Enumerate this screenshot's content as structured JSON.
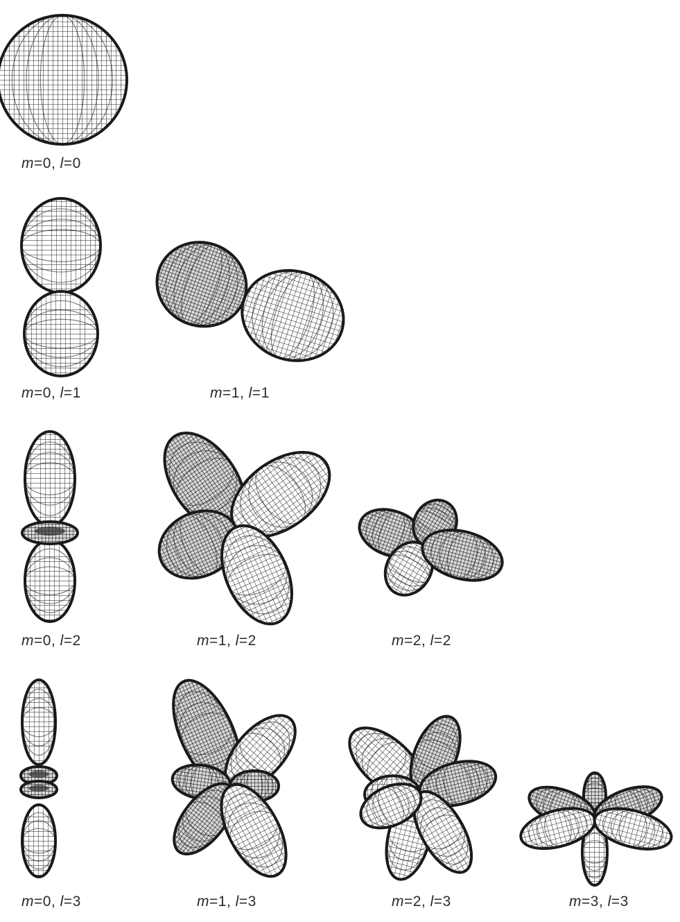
{
  "panels": [
    {
      "m": "0",
      "l": "0"
    },
    {
      "m": "0",
      "l": "1"
    },
    {
      "m": "1",
      "l": "1"
    },
    {
      "m": "0",
      "l": "2"
    },
    {
      "m": "1",
      "l": "2"
    },
    {
      "m": "2",
      "l": "2"
    },
    {
      "m": "0",
      "l": "3"
    },
    {
      "m": "1",
      "l": "3"
    },
    {
      "m": "2",
      "l": "3"
    },
    {
      "m": "3",
      "l": "3"
    }
  ],
  "label_format": {
    "m_symbol": "m",
    "l_symbol": "l",
    "equals": "=",
    "separator": ", "
  },
  "colors": {
    "line": "#1a1a1a",
    "background": "#ffffff"
  }
}
